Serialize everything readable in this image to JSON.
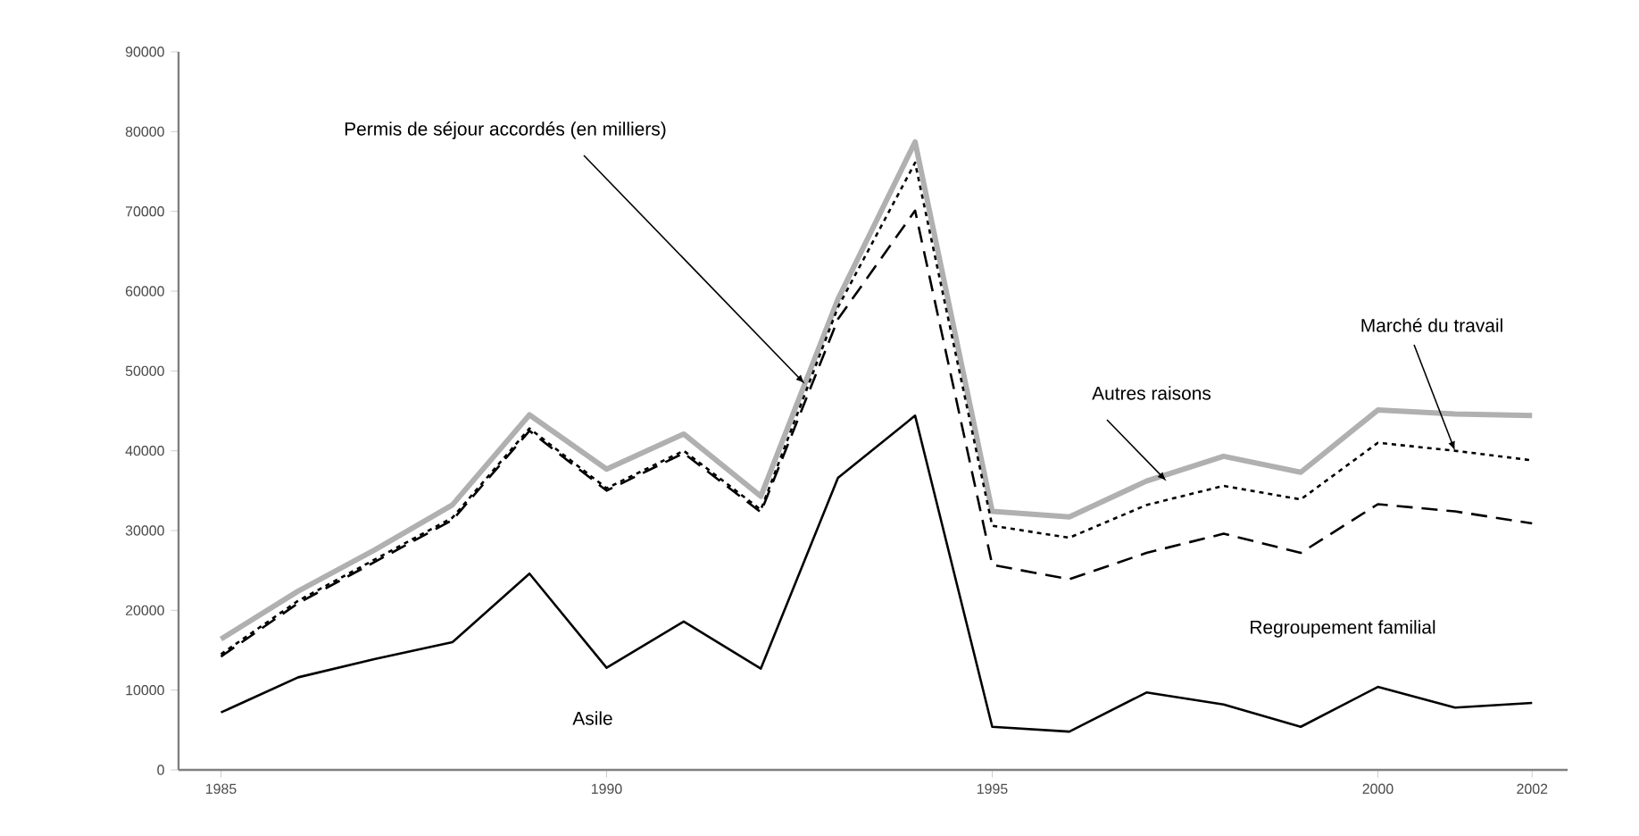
{
  "chart_data": {
    "type": "line",
    "x": [
      1985,
      1986,
      1987,
      1988,
      1989,
      1990,
      1991,
      1992,
      1993,
      1994,
      1995,
      1996,
      1997,
      1998,
      1999,
      2000,
      2001,
      2002
    ],
    "series": [
      {
        "color": "#b0b0b0",
        "line_style": "solid",
        "values": [
          16400,
          22400,
          27600,
          33200,
          44500,
          37700,
          42100,
          34300,
          59000,
          78700,
          32400,
          31700,
          36200,
          39300,
          37300,
          45100,
          44600,
          44400
        ]
      },
      {
        "color": "#000000",
        "line_style": "dotted",
        "values": [
          14500,
          21200,
          26400,
          31600,
          42800,
          35300,
          40000,
          32600,
          58000,
          76100,
          30600,
          29100,
          33200,
          35600,
          33900,
          41000,
          40000,
          38800
        ]
      },
      {
        "color": "#000000",
        "line_style": "dashed",
        "values": [
          14200,
          20900,
          26100,
          31300,
          42500,
          35000,
          39700,
          32300,
          56500,
          70100,
          25700,
          23900,
          27200,
          29600,
          27200,
          33300,
          32400,
          30900
        ]
      },
      {
        "color": "#000000",
        "line_style": "solid",
        "values": [
          7200,
          11600,
          13900,
          16000,
          24600,
          12800,
          18600,
          12700,
          36600,
          44400,
          5400,
          4800,
          9700,
          8200,
          5400,
          10400,
          7800,
          8400
        ]
      }
    ],
    "xlim": [
      1984.45,
      2002.46
    ],
    "xticks": [
      1985,
      1990,
      1995,
      2000,
      2002
    ],
    "ylim": [
      0,
      90000
    ],
    "yticks": [
      0,
      10000,
      20000,
      30000,
      40000,
      50000,
      60000,
      70000,
      80000,
      90000
    ],
    "grid": false,
    "marker": "none",
    "annotations": [
      {
        "text": "Permis de séjour accordés (en milliers)",
        "x": 1992.57,
        "y": 48400
      },
      {
        "text": "Autres raisons",
        "x": 1997.26,
        "y": 36200
      },
      {
        "text": "Marché du travail",
        "x": 2001.0,
        "y": 40000
      },
      "Regroupement familial",
      "Asile"
    ]
  }
}
